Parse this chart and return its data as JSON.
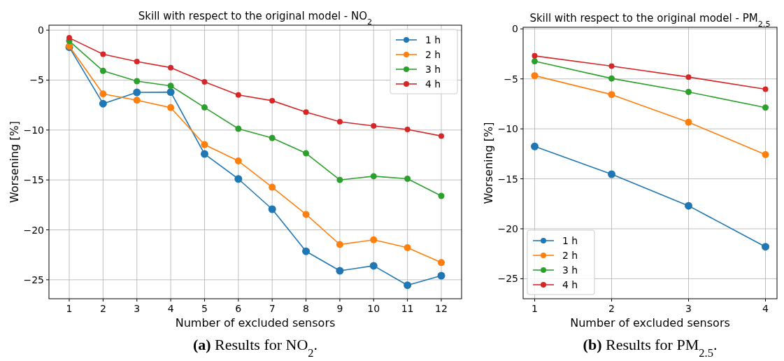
{
  "chart_data": [
    {
      "type": "line",
      "title": "Skill with respect to the original model - NO$_{2}$",
      "xlabel": "Number of excluded sensors",
      "ylabel": "Worsening [%]",
      "annotations": [
        "(a) Results for NO$_{2}$."
      ],
      "x": [
        1,
        2,
        3,
        4,
        5,
        6,
        7,
        8,
        9,
        10,
        11,
        12
      ],
      "xlim": [
        0.4,
        12.6
      ],
      "ylim": [
        -26.9,
        0.5
      ],
      "xticks": [
        1,
        2,
        3,
        4,
        5,
        6,
        7,
        8,
        9,
        10,
        11,
        12
      ],
      "yticks": [
        0,
        {
          "value": -5,
          "label": "−5"
        },
        {
          "value": -10,
          "label": "−10"
        },
        {
          "value": -15,
          "label": "−15"
        },
        {
          "value": -20,
          "label": "−20"
        },
        {
          "value": -25,
          "label": "−25"
        }
      ],
      "grid": true,
      "legend": "top right",
      "marker": "circle",
      "line_style": "solid",
      "series": [
        {
          "name": "1 h",
          "color": "#1f77b4",
          "values": [
            -1.7,
            -7.36,
            -6.23,
            -6.2,
            -12.4,
            -14.9,
            -17.93,
            -22.15,
            -24.1,
            -23.6,
            -25.55,
            -24.59
          ]
        },
        {
          "name": "2 h",
          "color": "#ff7f0e",
          "values": [
            -1.6,
            -6.38,
            -7.01,
            -7.76,
            -11.46,
            -13.1,
            -15.73,
            -18.45,
            -21.47,
            -21.0,
            -21.78,
            -23.28
          ]
        },
        {
          "name": "3 h",
          "color": "#2ca02c",
          "values": [
            -1.08,
            -4.08,
            -5.11,
            -5.58,
            -7.74,
            -9.87,
            -10.8,
            -12.33,
            -15.0,
            -14.63,
            -14.88,
            -16.6
          ]
        },
        {
          "name": "4 h",
          "color": "#d62728",
          "values": [
            -0.77,
            -2.41,
            -3.14,
            -3.75,
            -5.18,
            -6.49,
            -7.06,
            -8.2,
            -9.17,
            -9.59,
            -9.94,
            -10.6
          ]
        }
      ]
    },
    {
      "type": "line",
      "title": "Skill with respect to the original model - PM$_{2.5}$",
      "xlabel": "Number of excluded sensors",
      "ylabel": "Worsening [%]",
      "annotations": [
        "(b) Results for PM$_{2.5}$."
      ],
      "x": [
        1,
        2,
        3,
        4
      ],
      "xlim": [
        0.85,
        4.15
      ],
      "ylim": [
        -27.0,
        0.16
      ],
      "xticks": [
        1,
        2,
        3,
        4
      ],
      "yticks": [
        0,
        {
          "value": -5,
          "label": "−5"
        },
        {
          "value": -10,
          "label": "−10"
        },
        {
          "value": -15,
          "label": "−15"
        },
        {
          "value": -20,
          "label": "−20"
        },
        {
          "value": -25,
          "label": "−25"
        }
      ],
      "grid": true,
      "legend": "bottom left",
      "marker": "circle",
      "line_style": "solid",
      "series": [
        {
          "name": "1 h",
          "color": "#1f77b4",
          "values": [
            -11.76,
            -14.54,
            -17.7,
            -21.8
          ]
        },
        {
          "name": "2 h",
          "color": "#ff7f0e",
          "values": [
            -4.68,
            -6.57,
            -9.34,
            -12.58
          ]
        },
        {
          "name": "3 h",
          "color": "#2ca02c",
          "values": [
            -3.24,
            -4.96,
            -6.31,
            -7.87
          ]
        },
        {
          "name": "4 h",
          "color": "#d62728",
          "values": [
            -2.7,
            -3.73,
            -4.82,
            -6.03
          ]
        }
      ]
    }
  ]
}
